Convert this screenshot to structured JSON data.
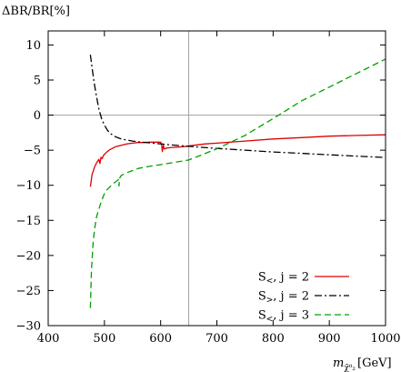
{
  "chart_data": {
    "type": "line",
    "ylabel": "ΔBR/BR[%]",
    "xlabel_main": "m",
    "xlabel_sub": "χ̃⁰₂",
    "xlabel_unit": "[GeV]",
    "xlim": [
      400,
      1000
    ],
    "ylim": [
      -30,
      12
    ],
    "x_ticks": [
      400,
      500,
      600,
      700,
      800,
      900,
      1000
    ],
    "y_ticks": [
      -30,
      -25,
      -20,
      -15,
      -10,
      -5,
      0,
      5,
      10
    ],
    "reference_lines": {
      "x": 650,
      "y": 0
    },
    "grid": false,
    "legend_position": "bottom-right",
    "series": [
      {
        "name": "S<, j = 2",
        "legend_main": "S",
        "legend_sub": "<",
        "legend_rest": ", j = 2",
        "color": "#e00000",
        "dash": "solid",
        "x": [
          475,
          478,
          482,
          486,
          490,
          492,
          494,
          496,
          498,
          500,
          505,
          510,
          520,
          530,
          540,
          550,
          560,
          570,
          580,
          590,
          600,
          602,
          603,
          604,
          605,
          606,
          608,
          610,
          620,
          640,
          660,
          680,
          700,
          750,
          800,
          850,
          900,
          950,
          1000
        ],
        "y": [
          -10.2,
          -8.5,
          -7.5,
          -6.8,
          -6.3,
          -6.9,
          -6.0,
          -6.2,
          -5.8,
          -5.6,
          -5.2,
          -4.9,
          -4.5,
          -4.3,
          -4.1,
          -4.0,
          -3.9,
          -3.9,
          -3.85,
          -3.85,
          -3.85,
          -4.3,
          -5.2,
          -4.6,
          -4.3,
          -4.8,
          -4.8,
          -4.7,
          -4.6,
          -4.5,
          -4.3,
          -4.1,
          -4.0,
          -3.7,
          -3.4,
          -3.2,
          -3.0,
          -2.9,
          -2.8
        ]
      },
      {
        "name": "S>, j = 2",
        "legend_main": "S",
        "legend_sub": ">",
        "legend_rest": ", j = 2",
        "color": "#000000",
        "dash": "dashdot",
        "x": [
          475,
          478,
          482,
          486,
          490,
          495,
          500,
          505,
          510,
          520,
          530,
          540,
          550,
          560,
          580,
          600,
          620,
          650,
          700,
          750,
          800,
          850,
          900,
          950,
          1000
        ],
        "y": [
          8.6,
          6.8,
          4.5,
          2.6,
          0.9,
          -0.5,
          -1.4,
          -2.1,
          -2.6,
          -3.1,
          -3.4,
          -3.55,
          -3.7,
          -3.8,
          -3.95,
          -4.1,
          -4.25,
          -4.45,
          -4.75,
          -5.0,
          -5.25,
          -5.45,
          -5.65,
          -5.85,
          -6.05
        ]
      },
      {
        "name": "S<, j = 3",
        "legend_main": "S",
        "legend_sub": "<",
        "legend_rest": ", j = 3",
        "color": "#00a000",
        "dash": "dashed",
        "x": [
          475,
          477,
          480,
          483,
          486,
          490,
          495,
          500,
          505,
          510,
          515,
          520,
          525,
          526,
          527,
          530,
          540,
          550,
          560,
          580,
          600,
          620,
          650,
          700,
          750,
          800,
          850,
          900,
          950,
          1000
        ],
        "y": [
          -27.5,
          -22.0,
          -18.0,
          -16.0,
          -14.5,
          -13.4,
          -12.2,
          -11.2,
          -10.6,
          -10.2,
          -9.8,
          -9.5,
          -9.2,
          -10.1,
          -9.0,
          -8.6,
          -8.2,
          -7.9,
          -7.6,
          -7.3,
          -7.05,
          -6.8,
          -6.4,
          -4.8,
          -2.9,
          -0.5,
          2.0,
          4.0,
          6.0,
          8.0
        ]
      }
    ]
  }
}
